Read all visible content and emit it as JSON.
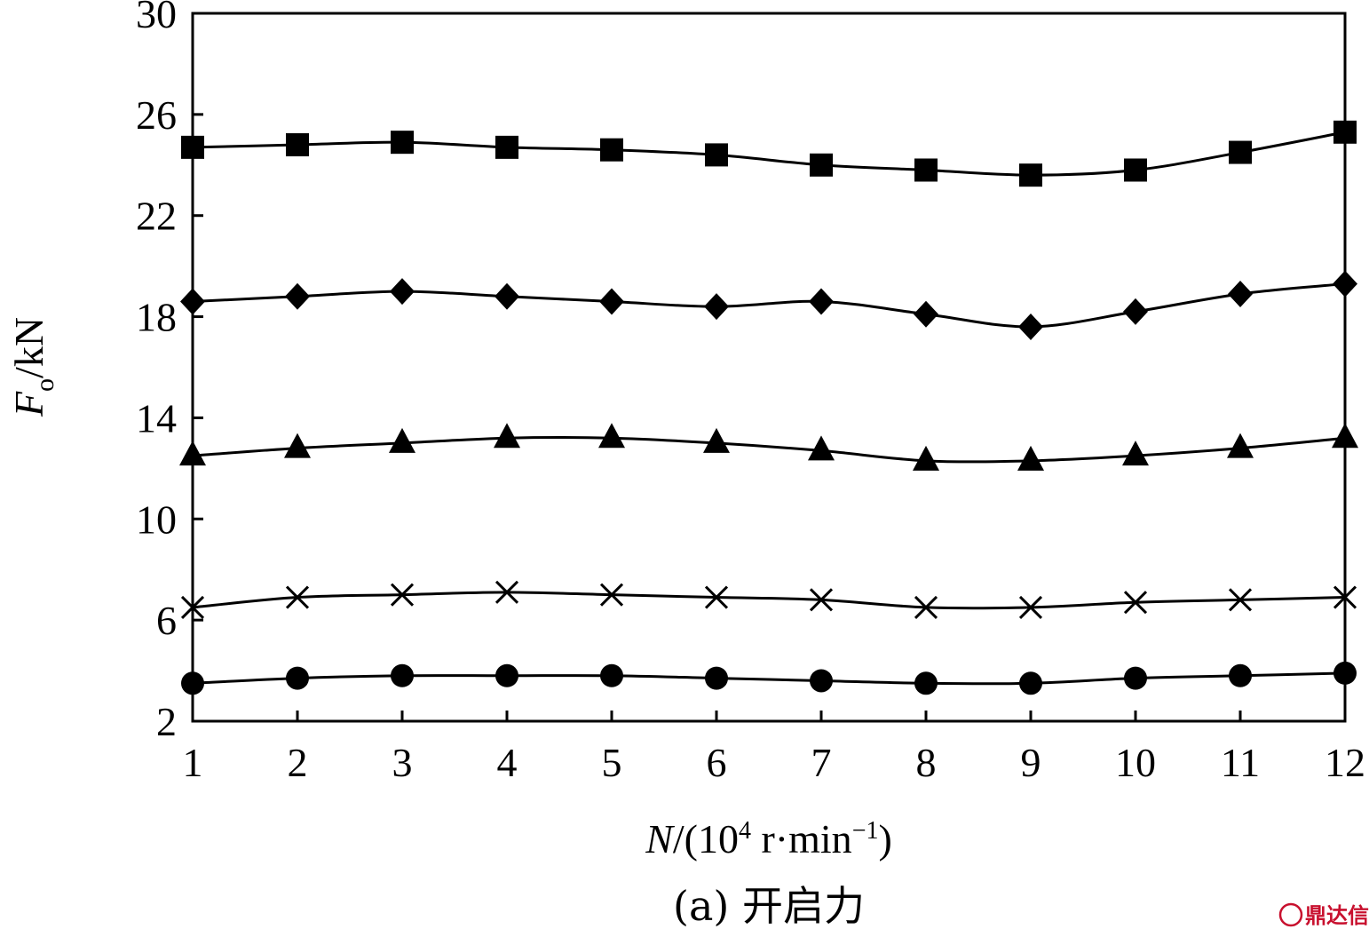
{
  "chart_data": {
    "type": "line",
    "xlabel_var": "N",
    "xlabel_rest": "/(10",
    "xlabel_exp": "4",
    "xlabel_unit": " r·min",
    "xlabel_unit_exp": "−1",
    "xlabel_close": ")",
    "ylabel_var": "F",
    "ylabel_sub": "o",
    "ylabel_unit": "/kN",
    "caption": "(a) 开启力",
    "x": [
      1,
      2,
      3,
      4,
      5,
      6,
      7,
      8,
      9,
      10,
      11,
      12
    ],
    "xlim": [
      1,
      12
    ],
    "ylim": [
      2,
      30
    ],
    "xticks": [
      1,
      2,
      3,
      4,
      5,
      6,
      7,
      8,
      9,
      10,
      11,
      12
    ],
    "yticks": [
      2,
      6,
      10,
      14,
      18,
      22,
      26,
      30
    ],
    "grid": false,
    "series": [
      {
        "marker": "square",
        "values": [
          24.7,
          24.8,
          24.9,
          24.7,
          24.6,
          24.4,
          24.0,
          23.8,
          23.6,
          23.8,
          24.5,
          25.3
        ]
      },
      {
        "marker": "diamond",
        "values": [
          18.6,
          18.8,
          19.0,
          18.8,
          18.6,
          18.4,
          18.6,
          18.1,
          17.6,
          18.2,
          18.9,
          19.3
        ]
      },
      {
        "marker": "triangle",
        "values": [
          12.5,
          12.8,
          13.0,
          13.2,
          13.2,
          13.0,
          12.7,
          12.3,
          12.3,
          12.5,
          12.8,
          13.2
        ]
      },
      {
        "marker": "cross",
        "values": [
          6.5,
          6.9,
          7.0,
          7.1,
          7.0,
          6.9,
          6.8,
          6.5,
          6.5,
          6.7,
          6.8,
          6.9
        ]
      },
      {
        "marker": "circle",
        "values": [
          3.5,
          3.7,
          3.8,
          3.8,
          3.8,
          3.7,
          3.6,
          3.5,
          3.5,
          3.7,
          3.8,
          3.9
        ]
      }
    ]
  },
  "watermark": {
    "text": "鼎达信",
    "color": "#c8102e"
  }
}
